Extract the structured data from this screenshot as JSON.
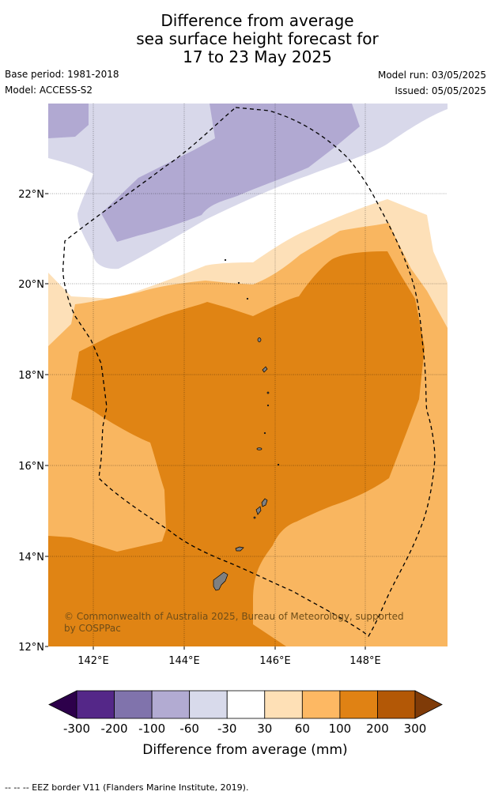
{
  "title": {
    "line1": "Difference from average",
    "line2": "sea surface height forecast for",
    "line3": "17 to 23 May 2025"
  },
  "meta": {
    "base_period": "Base period: 1981-2018",
    "model": "Model: ACCESS-S2",
    "model_run": "Model run: 03/05/2025",
    "issued": "Issued: 05/05/2025"
  },
  "map": {
    "lat_range": [
      12,
      24
    ],
    "lon_range": [
      141,
      149.8
    ],
    "lat_labels": [
      "22°N",
      "20°N",
      "18°N",
      "16°N",
      "14°N",
      "12°N"
    ],
    "lon_labels": [
      "142°E",
      "144°E",
      "146°E",
      "148°E"
    ],
    "copyright": "© Commonwealth of Australia 2025, Bureau of Meteorology, supported by COSPPac",
    "colors": {
      "lt_purple": "#d8d8ea",
      "md_purple": "#b1a9d2",
      "lt_orange": "#fde0b8",
      "md_orange": "#f9b660",
      "dk_orange": "#e08414",
      "land": "#808080"
    }
  },
  "colorbar": {
    "tick_labels": [
      "-300",
      "-200",
      "-100",
      "-60",
      "-30",
      "30",
      "60",
      "100",
      "200",
      "300"
    ],
    "colors": [
      "#2d004b",
      "#542788",
      "#8073ac",
      "#b2abd2",
      "#d8daeb",
      "#ffffff",
      "#fee0b6",
      "#fdb863",
      "#e08214",
      "#b35806",
      "#7f3b08"
    ],
    "label": "Difference from average (mm)"
  },
  "footer": "--  --  -- EEZ border V11 (Flanders Marine Institute, 2019)."
}
